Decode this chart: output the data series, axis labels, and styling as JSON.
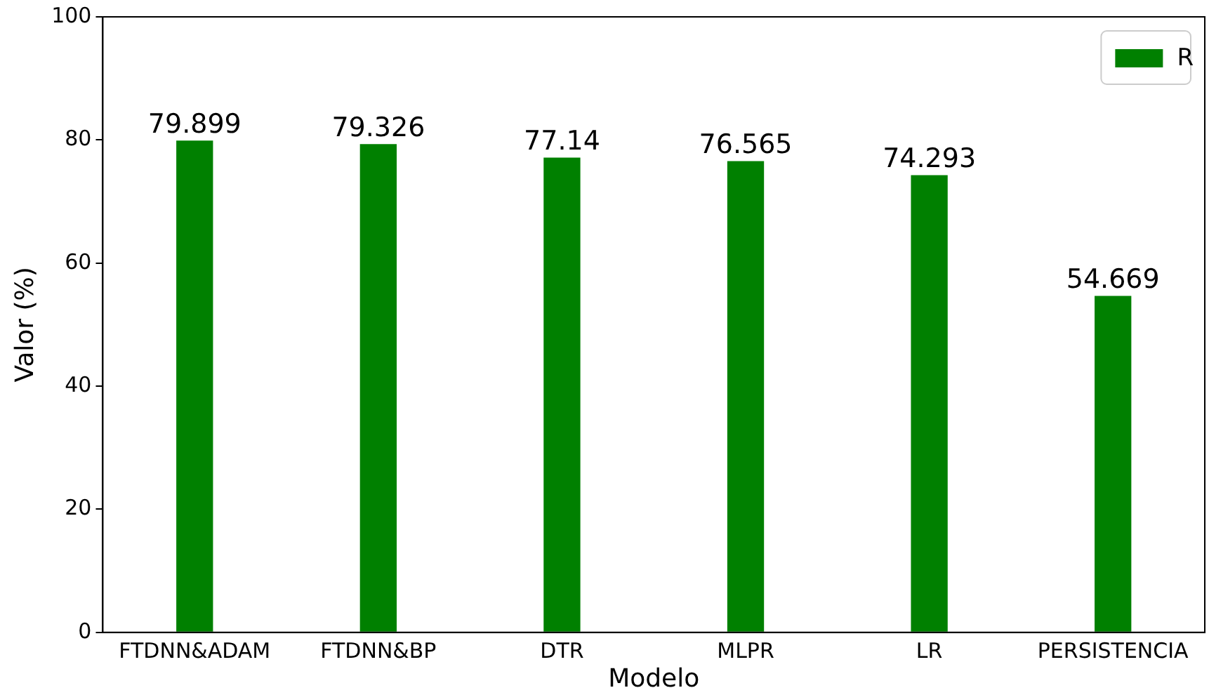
{
  "chart_data": {
    "type": "bar",
    "xlabel": "Modelo",
    "ylabel": "Valor (%)",
    "categories": [
      "FTDNN&ADAM",
      "FTDNN&BP",
      "DTR",
      "MLPR",
      "LR",
      "PERSISTENCIA"
    ],
    "series": [
      {
        "name": "R",
        "color": "#008000",
        "values": [
          79.899,
          79.326,
          77.14,
          76.565,
          74.293,
          54.669
        ]
      }
    ],
    "ylim": [
      0,
      100
    ],
    "yticks": [
      0,
      20,
      40,
      60,
      80,
      100
    ],
    "grid": false,
    "legend": "top right",
    "data_labels": true
  }
}
